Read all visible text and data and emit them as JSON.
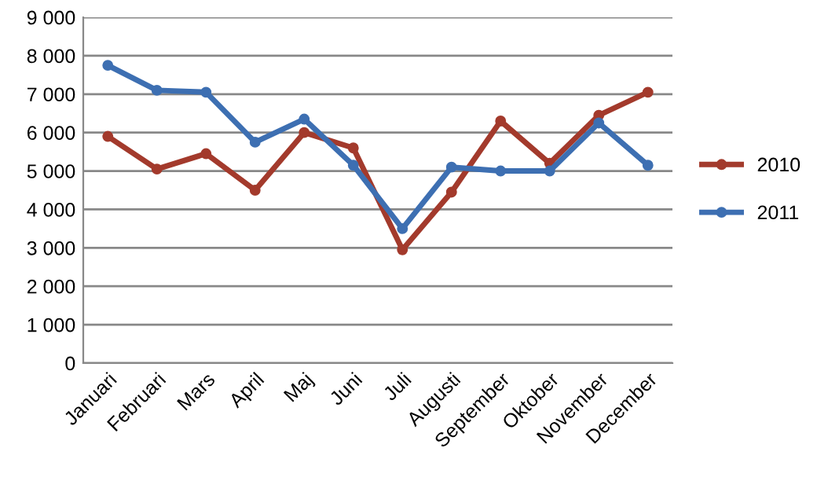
{
  "chart_data": {
    "type": "line",
    "categories": [
      "Januari",
      "Februari",
      "Mars",
      "April",
      "Maj",
      "Juni",
      "Juli",
      "Augusti",
      "September",
      "Oktober",
      "November",
      "December"
    ],
    "series": [
      {
        "name": "2010",
        "color": "#a33a2c",
        "values": [
          5900,
          5050,
          5450,
          4500,
          6000,
          5600,
          2950,
          4450,
          6300,
          5200,
          6450,
          7050
        ]
      },
      {
        "name": "2011",
        "color": "#3d6fb2",
        "values": [
          7750,
          7100,
          7050,
          5750,
          6350,
          5150,
          3500,
          5100,
          5000,
          5000,
          6250,
          5150
        ]
      }
    ],
    "ylim": [
      0,
      9000
    ],
    "yticks": [
      {
        "value": 0,
        "label": "0"
      },
      {
        "value": 1000,
        "label": "1 000"
      },
      {
        "value": 2000,
        "label": "2 000"
      },
      {
        "value": 3000,
        "label": "3 000"
      },
      {
        "value": 4000,
        "label": "4 000"
      },
      {
        "value": 5000,
        "label": "5 000"
      },
      {
        "value": 6000,
        "label": "6 000"
      },
      {
        "value": 7000,
        "label": "7 000"
      },
      {
        "value": 8000,
        "label": "8 000"
      },
      {
        "value": 9000,
        "label": "9 000"
      }
    ],
    "grid": "y",
    "legend": "right",
    "marker": "circle",
    "line_style": "solid"
  }
}
